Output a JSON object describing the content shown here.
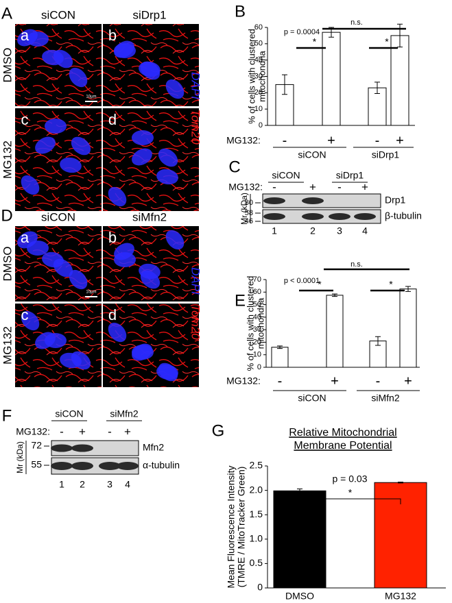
{
  "figure": {
    "panel_a": {
      "label": "A",
      "columns": [
        "siCON",
        "siDrp1"
      ],
      "rows": [
        "DMSO",
        "MG132"
      ],
      "subpanels": [
        "a",
        "b",
        "c",
        "d"
      ],
      "stains": [
        {
          "name": "DAPI",
          "color": "#2a2aff"
        },
        {
          "name": "Tom20",
          "color": "#ff1e1e"
        }
      ],
      "scale_bar": "10µm"
    },
    "panel_d": {
      "label": "D",
      "columns": [
        "siCON",
        "siMfn2"
      ],
      "rows": [
        "DMSO",
        "MG132"
      ],
      "subpanels": [
        "a",
        "b",
        "c",
        "d"
      ],
      "stains": [
        {
          "name": "DAPI",
          "color": "#2a2aff"
        },
        {
          "name": "Tom20",
          "color": "#ff1e1e"
        }
      ],
      "scale_bar": "10µm"
    },
    "panel_c": {
      "label": "C",
      "groups": [
        "siCON",
        "siDrp1"
      ],
      "treatment": "MG132:",
      "signs": [
        "-",
        "+",
        "-",
        "+"
      ],
      "mw_label": "Mr (kDa)",
      "markers": [
        "80",
        "58",
        "46"
      ],
      "bands": [
        "Drp1",
        "β-tubulin"
      ],
      "lanes": [
        "1",
        "2",
        "3",
        "4"
      ]
    },
    "panel_f": {
      "label": "F",
      "groups": [
        "siCON",
        "siMfn2"
      ],
      "treatment": "MG132:",
      "signs": [
        "-",
        "+",
        "-",
        "+"
      ],
      "mw_label": "Mr (kDa)",
      "markers": [
        "72",
        "55"
      ],
      "bands": [
        "Mfn2",
        "α-tubulin"
      ],
      "lanes": [
        "1",
        "2",
        "3",
        "4"
      ]
    }
  },
  "chart_data": [
    {
      "type": "bar",
      "label": "B",
      "ylabel": [
        "% of cells with clustered",
        "mitochondria"
      ],
      "categories": [
        "-",
        "+",
        "-",
        "+"
      ],
      "values": [
        25,
        57,
        23,
        55
      ],
      "errors": [
        6,
        3,
        3.5,
        7
      ],
      "color": "#ffffff",
      "groups": [
        "siCON",
        "siDrp1"
      ],
      "treatment": "MG132:",
      "ylim": [
        0,
        60
      ],
      "yticks": [
        0,
        10,
        20,
        30,
        40,
        50,
        60
      ],
      "annotations": {
        "p_value": "p = 0.0004",
        "ns": "n.s.",
        "stars": [
          "*",
          "*"
        ]
      }
    },
    {
      "type": "bar",
      "label": "E",
      "ylabel": [
        "% of cells with clustered",
        "mitochondria"
      ],
      "categories": [
        "-",
        "+",
        "-",
        "+"
      ],
      "values": [
        16,
        57.5,
        21,
        62.5
      ],
      "errors": [
        1,
        1,
        3.5,
        2
      ],
      "color": "#ffffff",
      "groups": [
        "siCON",
        "siMfn2"
      ],
      "treatment": "MG132:",
      "ylim": [
        0,
        70
      ],
      "yticks": [
        0,
        10,
        20,
        30,
        40,
        50,
        60,
        70
      ],
      "annotations": {
        "p_value": "p < 0.0001",
        "ns": "n.s.",
        "stars": [
          "*",
          "*"
        ]
      }
    },
    {
      "type": "bar",
      "label": "G",
      "title": [
        "Relative Mitochondrial",
        "Membrane Potential"
      ],
      "ylabel": [
        "Mean Fluorescence Intensity",
        "(TMRE / MitoTracker Green)"
      ],
      "categories": [
        "DMSO",
        "MG132"
      ],
      "values": [
        1.99,
        2.16
      ],
      "errors": [
        0.04,
        0.01
      ],
      "colors": [
        "#000000",
        "#ff2200"
      ],
      "ylim": [
        0,
        2.5
      ],
      "yticks": [
        0,
        0.5,
        {
          "value": 1,
          "label": "1.0"
        },
        1.5,
        {
          "value": 2,
          "label": "2.0"
        },
        2.5
      ],
      "annotations": {
        "p_value": "p = 0.03",
        "stars": [
          "*"
        ]
      }
    }
  ]
}
